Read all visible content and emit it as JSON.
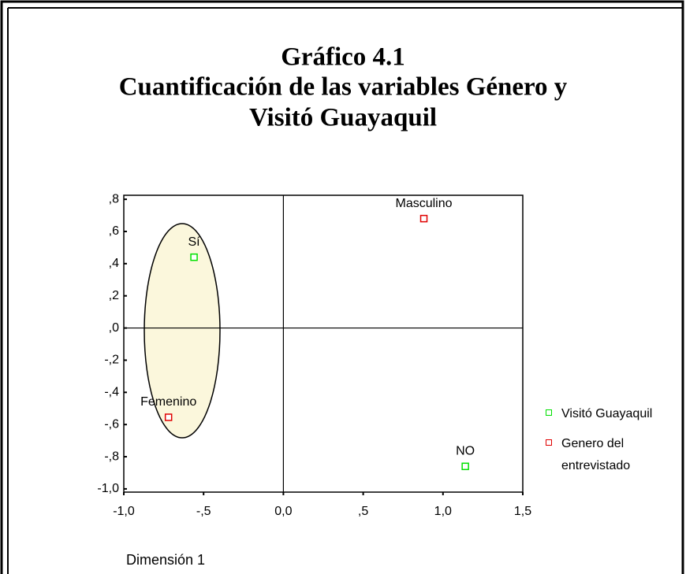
{
  "chart_data": {
    "type": "scatter",
    "title": [
      "Gráfico 4.1",
      "Cuantificación de las variables Género y",
      "Visitó Guayaquil"
    ],
    "xlabel": "Dimensión 1",
    "xlim": [
      -1.0,
      1.5
    ],
    "ylim": [
      -1.02,
      0.825
    ],
    "xticks": [
      {
        "value": -1.0,
        "label": "-1,0"
      },
      {
        "value": -0.5,
        "label": "-,5"
      },
      {
        "value": 0.0,
        "label": "0,0"
      },
      {
        "value": 0.5,
        "label": ",5"
      },
      {
        "value": 1.0,
        "label": "1,0"
      },
      {
        "value": 1.5,
        "label": "1,5"
      }
    ],
    "yticks": [
      {
        "value": 0.8,
        "label": ",8"
      },
      {
        "value": 0.6,
        "label": ",6"
      },
      {
        "value": 0.4,
        "label": ",4"
      },
      {
        "value": 0.2,
        "label": ",2"
      },
      {
        "value": 0.0,
        "label": ",0"
      },
      {
        "value": -0.2,
        "label": "-,2"
      },
      {
        "value": -0.4,
        "label": "-,4"
      },
      {
        "value": -0.6,
        "label": "-,6"
      },
      {
        "value": -0.8,
        "label": "-,8"
      },
      {
        "value": -1.0,
        "label": "-1,0"
      }
    ],
    "series": [
      {
        "name": "Visitó Guayaquil",
        "color": "#00e000",
        "labels": [
          "Sí",
          "NO"
        ],
        "x": [
          -0.56,
          1.14
        ],
        "values": [
          0.44,
          -0.86
        ]
      },
      {
        "name": "Genero del entrevistado",
        "color": "#e00000",
        "labels": [
          "Masculino",
          "Femenino"
        ],
        "x": [
          0.88,
          -0.72
        ],
        "values": [
          0.68,
          -0.555
        ]
      }
    ]
  }
}
